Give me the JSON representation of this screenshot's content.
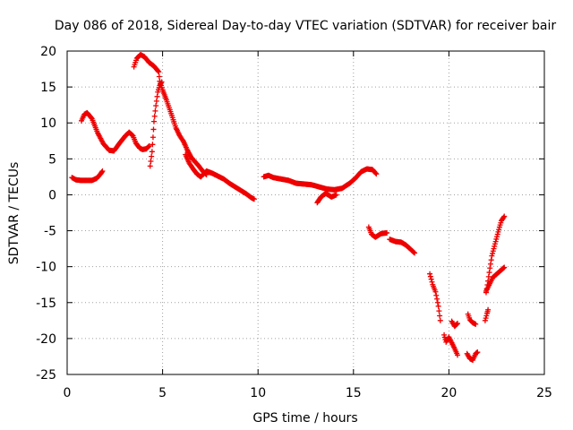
{
  "chart_data": {
    "type": "scatter",
    "title": "Day 086 of 2018, Sidereal Day-to-day VTEC variation (SDTVAR) for receiver bair",
    "xlabel": "GPS time / hours",
    "ylabel": "SDTVAR / TECUs",
    "xlim": [
      0,
      25
    ],
    "ylim": [
      -25,
      20
    ],
    "xticks": [
      0,
      5,
      10,
      15,
      20,
      25
    ],
    "yticks": [
      -25,
      -20,
      -15,
      -10,
      -5,
      0,
      5,
      10,
      15,
      20
    ],
    "grid": true,
    "marker": "+",
    "color": "#ee0000",
    "series": [
      {
        "name": "SDTVAR",
        "segments": [
          [
            [
              0.25,
              2.4
            ],
            [
              0.45,
              2.1
            ],
            [
              0.7,
              2.0
            ],
            [
              1.0,
              2.0
            ],
            [
              1.3,
              2.0
            ],
            [
              1.55,
              2.3
            ],
            [
              1.75,
              2.9
            ],
            [
              1.85,
              3.3
            ]
          ],
          [
            [
              0.75,
              10.3
            ],
            [
              0.9,
              11.2
            ],
            [
              1.05,
              11.4
            ],
            [
              1.3,
              10.6
            ],
            [
              1.6,
              8.6
            ],
            [
              1.9,
              7.1
            ],
            [
              2.2,
              6.2
            ],
            [
              2.45,
              6.1
            ],
            [
              2.75,
              7.2
            ],
            [
              3.05,
              8.2
            ],
            [
              3.25,
              8.7
            ],
            [
              3.45,
              8.2
            ],
            [
              3.6,
              7.2
            ],
            [
              3.8,
              6.5
            ],
            [
              3.95,
              6.3
            ],
            [
              4.15,
              6.4
            ],
            [
              4.3,
              6.8
            ]
          ],
          [
            [
              3.5,
              17.8
            ],
            [
              3.65,
              19.0
            ],
            [
              3.85,
              19.5
            ],
            [
              4.05,
              19.2
            ],
            [
              4.3,
              18.4
            ],
            [
              4.55,
              17.9
            ],
            [
              4.8,
              17.1
            ],
            [
              4.85,
              15.8
            ],
            [
              5.0,
              14.6
            ],
            [
              5.2,
              13.2
            ],
            [
              5.45,
              11.3
            ],
            [
              5.7,
              9.3
            ],
            [
              5.9,
              8.2
            ],
            [
              6.1,
              7.4
            ],
            [
              6.3,
              6.2
            ],
            [
              6.5,
              5.2
            ],
            [
              6.7,
              4.6
            ],
            [
              6.9,
              4.0
            ],
            [
              7.1,
              3.3
            ],
            [
              7.3,
              2.8
            ]
          ],
          [
            [
              4.35,
              4.0
            ],
            [
              4.45,
              6.0
            ],
            [
              4.5,
              8.0
            ],
            [
              4.55,
              10.2
            ],
            [
              4.65,
              12.4
            ],
            [
              4.75,
              14.3
            ],
            [
              4.85,
              15.2
            ],
            [
              4.95,
              15.7
            ]
          ],
          [
            [
              6.2,
              5.6
            ],
            [
              6.4,
              4.4
            ],
            [
              6.6,
              3.6
            ],
            [
              6.8,
              2.9
            ],
            [
              7.0,
              2.5
            ],
            [
              7.3,
              3.3
            ],
            [
              7.6,
              3.0
            ],
            [
              7.9,
              2.6
            ],
            [
              8.2,
              2.2
            ],
            [
              8.5,
              1.6
            ],
            [
              8.8,
              1.1
            ],
            [
              9.1,
              0.6
            ],
            [
              9.4,
              0.1
            ],
            [
              9.65,
              -0.4
            ],
            [
              9.8,
              -0.6
            ]
          ],
          [
            [
              10.3,
              2.5
            ],
            [
              10.55,
              2.7
            ],
            [
              10.8,
              2.4
            ],
            [
              11.2,
              2.2
            ],
            [
              11.6,
              2.0
            ],
            [
              12.0,
              1.6
            ],
            [
              12.4,
              1.5
            ],
            [
              12.8,
              1.4
            ],
            [
              13.2,
              1.1
            ],
            [
              13.6,
              0.8
            ],
            [
              14.0,
              0.7
            ],
            [
              14.4,
              0.9
            ],
            [
              14.8,
              1.6
            ],
            [
              15.1,
              2.3
            ],
            [
              15.4,
              3.2
            ],
            [
              15.7,
              3.6
            ],
            [
              16.0,
              3.5
            ],
            [
              16.2,
              2.9
            ]
          ],
          [
            [
              13.1,
              -1.1
            ],
            [
              13.3,
              -0.3
            ],
            [
              13.55,
              0.2
            ],
            [
              13.85,
              -0.3
            ],
            [
              14.1,
              0.0
            ]
          ],
          [
            [
              15.8,
              -4.5
            ],
            [
              15.95,
              -5.5
            ],
            [
              16.15,
              -5.9
            ],
            [
              16.45,
              -5.4
            ],
            [
              16.75,
              -5.3
            ]
          ],
          [
            [
              16.9,
              -6.2
            ],
            [
              17.2,
              -6.5
            ],
            [
              17.5,
              -6.6
            ],
            [
              17.75,
              -7.0
            ],
            [
              18.0,
              -7.6
            ],
            [
              18.2,
              -8.1
            ]
          ],
          [
            [
              19.0,
              -11.0
            ],
            [
              19.15,
              -12.5
            ],
            [
              19.3,
              -13.5
            ],
            [
              19.45,
              -15.5
            ],
            [
              19.55,
              -17.5
            ]
          ],
          [
            [
              19.75,
              -19.5
            ],
            [
              19.85,
              -20.5
            ],
            [
              20.0,
              -19.8
            ],
            [
              20.15,
              -20.6
            ],
            [
              20.3,
              -21.4
            ],
            [
              20.45,
              -22.3
            ]
          ],
          [
            [
              20.15,
              -17.6
            ],
            [
              20.3,
              -18.3
            ],
            [
              20.45,
              -17.9
            ]
          ],
          [
            [
              21.0,
              -16.6
            ],
            [
              21.1,
              -17.4
            ],
            [
              21.25,
              -17.8
            ],
            [
              21.4,
              -18.0
            ]
          ],
          [
            [
              20.95,
              -22.1
            ],
            [
              21.1,
              -22.8
            ],
            [
              21.25,
              -23.0
            ],
            [
              21.4,
              -22.1
            ],
            [
              21.5,
              -21.9
            ]
          ],
          [
            [
              21.9,
              -17.5
            ],
            [
              22.0,
              -16.5
            ],
            [
              22.05,
              -16.0
            ]
          ],
          [
            [
              21.95,
              -13.4
            ],
            [
              22.1,
              -12.6
            ],
            [
              22.3,
              -11.5
            ],
            [
              22.6,
              -10.8
            ],
            [
              22.9,
              -10.1
            ]
          ],
          [
            [
              21.95,
              -13.6
            ],
            [
              22.05,
              -12.0
            ],
            [
              22.15,
              -10.2
            ],
            [
              22.25,
              -8.5
            ],
            [
              22.35,
              -7.5
            ],
            [
              22.45,
              -6.5
            ],
            [
              22.55,
              -5.5
            ],
            [
              22.65,
              -4.5
            ],
            [
              22.75,
              -3.6
            ],
            [
              22.9,
              -3.0
            ]
          ]
        ]
      }
    ]
  }
}
